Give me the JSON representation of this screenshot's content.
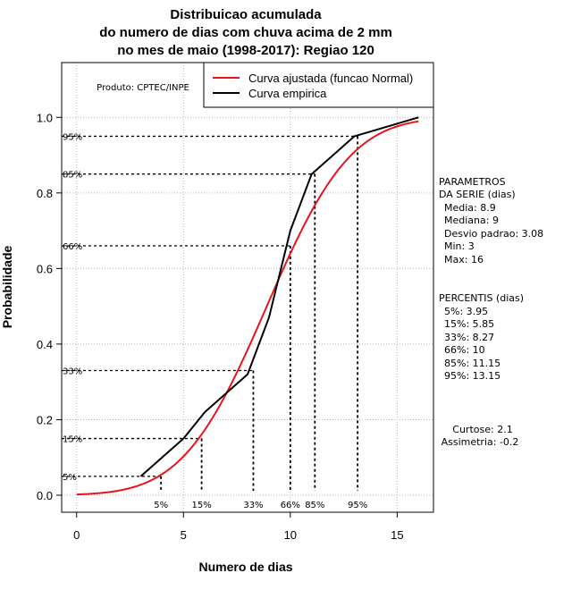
{
  "chart_data": {
    "type": "line",
    "title_lines": [
      "Distribuicao acumulada",
      "do numero de dias com chuva acima de 2 mm",
      "no mes de maio (1998-2017): Regiao 120"
    ],
    "xlabel": "Numero de dias",
    "ylabel": "Probabilidade",
    "xlim": [
      -0.7,
      16.7
    ],
    "ylim": [
      -0.045,
      1.145
    ],
    "x_ticks": [
      0,
      5,
      10,
      15
    ],
    "y_ticks": [
      0.0,
      0.2,
      0.4,
      0.6,
      0.8,
      1.0
    ],
    "x_tick_labels": [
      "0",
      "5",
      "10",
      "15"
    ],
    "y_tick_labels": [
      "0.0",
      "0.2",
      "0.4",
      "0.6",
      "0.8",
      "1.0"
    ],
    "grid": true,
    "product_label": "Produto: CPTEC/INPE",
    "legend": {
      "position": "top-right",
      "entries": [
        {
          "label": "Curva ajustada (funcao Normal)",
          "color": "#e8141a"
        },
        {
          "label": "Curva empirica",
          "color": "#000000"
        }
      ]
    },
    "series": [
      {
        "name": "Curva ajustada (funcao Normal)",
        "color": "#e8141a",
        "distribution": "normal",
        "mean": 8.9,
        "sd": 3.08,
        "x_range": [
          0,
          16
        ]
      },
      {
        "name": "Curva empirica",
        "color": "#000000",
        "x": [
          3,
          5,
          6,
          8,
          9,
          10,
          11,
          13,
          16
        ],
        "y": [
          0.05,
          0.15,
          0.22,
          0.32,
          0.47,
          0.7,
          0.85,
          0.95,
          1.0
        ]
      }
    ],
    "percentiles": [
      {
        "label": "5%",
        "p": 0.05,
        "x": 3.95
      },
      {
        "label": "15%",
        "p": 0.15,
        "x": 5.85
      },
      {
        "label": "33%",
        "p": 0.33,
        "x": 8.27
      },
      {
        "label": "66%",
        "p": 0.66,
        "x": 10
      },
      {
        "label": "85%",
        "p": 0.85,
        "x": 11.15
      },
      {
        "label": "95%",
        "p": 0.95,
        "x": 13.15
      }
    ],
    "side_panel": {
      "params_title_1": "PARAMETROS",
      "params_title_2": "DA SERIE (dias)",
      "params": [
        "Media: 8.9",
        "Mediana: 9",
        "Desvio padrao: 3.08",
        "Min: 3",
        "Max: 16"
      ],
      "percentis_title": "PERCENTIS (dias)",
      "percentis": [
        "5%: 3.95",
        "15%: 5.85",
        "33%: 8.27",
        "66%: 10",
        "85%: 11.15",
        "95%: 13.15"
      ],
      "kurtosis": "Curtose: 2.1",
      "skewness": "Assimetria: -0.2"
    }
  }
}
